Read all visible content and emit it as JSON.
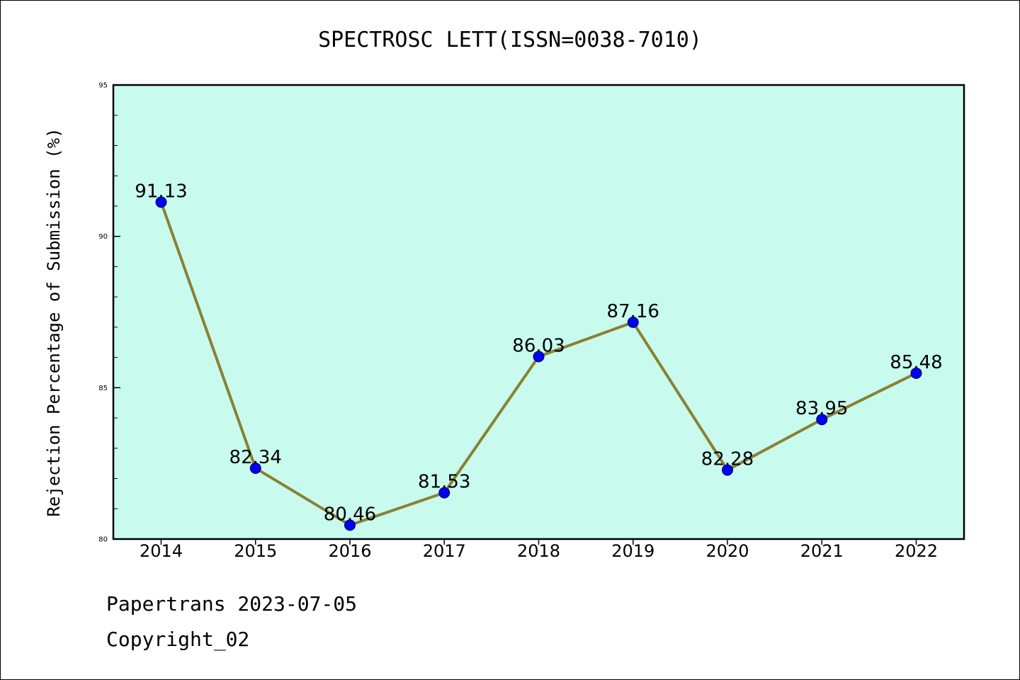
{
  "chart_data": {
    "type": "line",
    "title": "SPECTROSC LETT(ISSN=0038-7010)",
    "xlabel": "",
    "ylabel": "Rejection Percentage of Submission (%)",
    "categories": [
      "2014",
      "2015",
      "2016",
      "2017",
      "2018",
      "2019",
      "2020",
      "2021",
      "2022"
    ],
    "series": [
      {
        "values": [
          91.13,
          82.34,
          80.46,
          81.53,
          86.03,
          87.16,
          82.28,
          83.95,
          85.48
        ],
        "data_labels": [
          "91.13",
          "82.34",
          "80.46",
          "81.53",
          "86.03",
          "87.16",
          "82.28",
          "83.95",
          "85.48"
        ],
        "line_color": "#8b8035",
        "marker_color": "#0000ee"
      }
    ],
    "ylim": [
      80,
      95
    ],
    "yticks": [
      80,
      85,
      90,
      95
    ],
    "ytick_labels": [
      "80",
      "85",
      "90",
      "95"
    ],
    "plot_background": "#c8fbee",
    "grid": false,
    "legend": "none"
  },
  "footer": {
    "line1": "Papertrans 2023-07-05",
    "line2": "Copyright_02"
  }
}
